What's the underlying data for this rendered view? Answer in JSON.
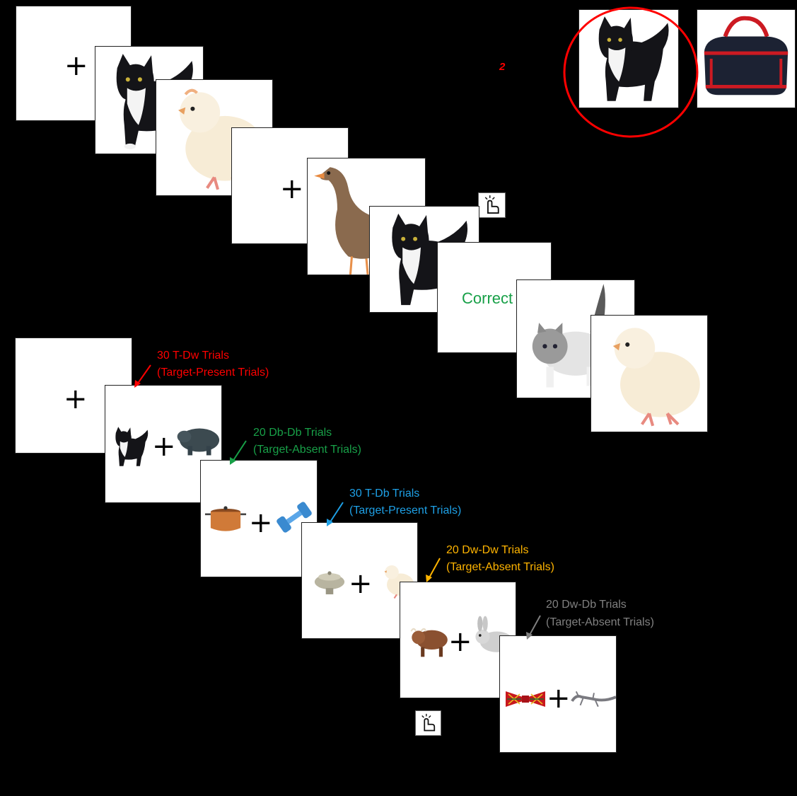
{
  "top_sequence": {
    "fixation_symbol": "+",
    "feedback_text": "Correct",
    "marker_text": "2",
    "cue_images": [
      "cat-target",
      "bag-distractor"
    ],
    "stream_images": [
      "cat",
      "chick",
      "goose",
      "cat",
      "kitten",
      "chick"
    ]
  },
  "trial_types": [
    {
      "title": "30 T-Dw Trials",
      "subtitle": "(Target-Present Trials)",
      "color": "#ff0000",
      "pair": [
        "cat",
        "hippo"
      ]
    },
    {
      "title": "20 Db-Db Trials",
      "subtitle": "(Target-Absent Trials)",
      "color": "#18a048",
      "pair": [
        "pot",
        "dumbbell"
      ]
    },
    {
      "title": "30 T-Db Trials",
      "subtitle": "(Target-Present Trials)",
      "color": "#1ea0e6",
      "pair": [
        "sugar-bowl",
        "chick"
      ]
    },
    {
      "title": "20 Dw-Dw Trials",
      "subtitle": "(Target-Absent Trials)",
      "color": "#ffb400",
      "pair": [
        "highland-cow",
        "rabbit"
      ]
    },
    {
      "title": "20 Dw-Db Trials",
      "subtitle": "(Target-Absent Trials)",
      "color": "#808080",
      "pair": [
        "bow-tie",
        "lizard"
      ]
    }
  ],
  "icons": [
    "click-hand-icon"
  ],
  "colors": {
    "background": "#000000",
    "card": "#ffffff",
    "highlight_ring": "#ff0000",
    "feedback": "#18a048"
  }
}
